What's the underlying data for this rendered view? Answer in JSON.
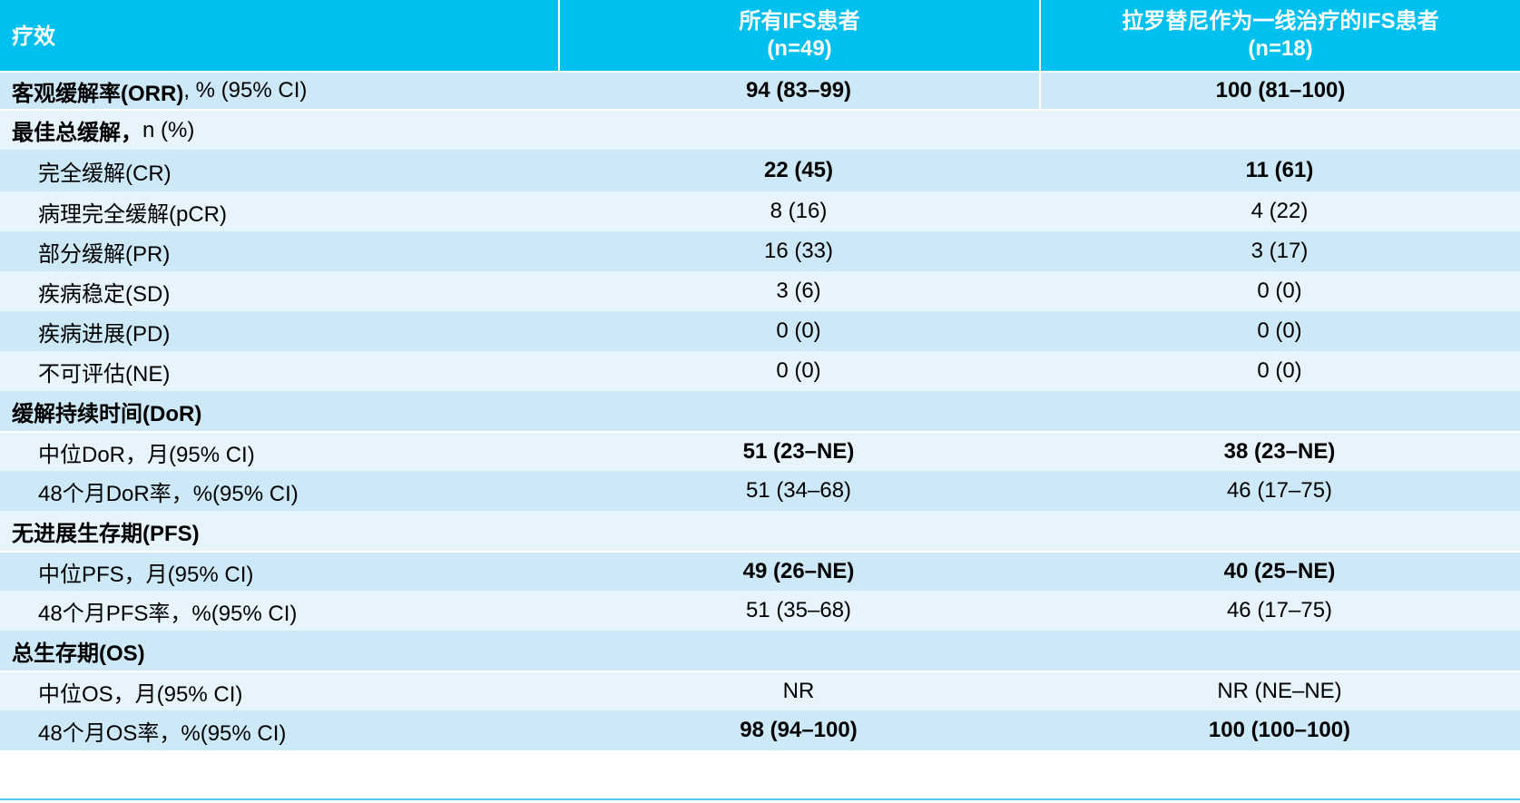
{
  "header": {
    "col1": "疗效",
    "col2_line1": "所有IFS患者",
    "col2_line2": "(n=49)",
    "col3_line1": "拉罗替尼作为一线治疗的IFS患者",
    "col3_line2": "(n=18)"
  },
  "rows": [
    {
      "label_bold": "客观缓解率(ORR)",
      "label_rest": ", % (95% CI)",
      "v1": "94 (83–99)",
      "v2": "100 (81–100)"
    },
    {
      "label_bold": "最佳总缓解，",
      "label_rest": "n (%)",
      "v1": "",
      "v2": ""
    },
    {
      "label": "完全缓解(CR)",
      "v1": "22 (45)",
      "v2": "11 (61)"
    },
    {
      "label": "病理完全缓解(pCR)",
      "v1": "8 (16)",
      "v2": "4 (22)"
    },
    {
      "label": "部分缓解(PR)",
      "v1": "16 (33)",
      "v2": "3 (17)"
    },
    {
      "label": "疾病稳定(SD)",
      "v1": "3 (6)",
      "v2": "0 (0)"
    },
    {
      "label": "疾病进展(PD)",
      "v1": "0 (0)",
      "v2": "0 (0)"
    },
    {
      "label": "不可评估(NE)",
      "v1": "0 (0)",
      "v2": "0 (0)"
    },
    {
      "label_bold": "缓解持续时间(DoR)",
      "label_rest": "",
      "v1": "",
      "v2": ""
    },
    {
      "label": "中位DoR，月(95% CI)",
      "v1": "51 (23–NE)",
      "v2": "38 (23–NE)"
    },
    {
      "label": "48个月DoR率，%(95% CI)",
      "v1": "51 (34–68)",
      "v2": "46 (17–75)"
    },
    {
      "label_bold": "无进展生存期(PFS)",
      "label_rest": "",
      "v1": "",
      "v2": ""
    },
    {
      "label": "中位PFS，月(95% CI)",
      "v1": "49 (26–NE)",
      "v2": "40 (25–NE)"
    },
    {
      "label": "48个月PFS率，%(95% CI)",
      "v1": "51 (35–68)",
      "v2": "46 (17–75)"
    },
    {
      "label_bold": "总生存期(OS)",
      "label_rest": "",
      "v1": "",
      "v2": ""
    },
    {
      "label": "中位OS，月(95% CI)",
      "v1": "NR",
      "v2": "NR (NE–NE)"
    },
    {
      "label": "48个月OS率，%(95% CI)",
      "v1": "98 (94–100)",
      "v2": "100 (100–100)"
    }
  ],
  "colors": {
    "header_bg": "#00c0f0",
    "row_dark": "#cde9f8",
    "row_light": "#e8f4fc"
  }
}
